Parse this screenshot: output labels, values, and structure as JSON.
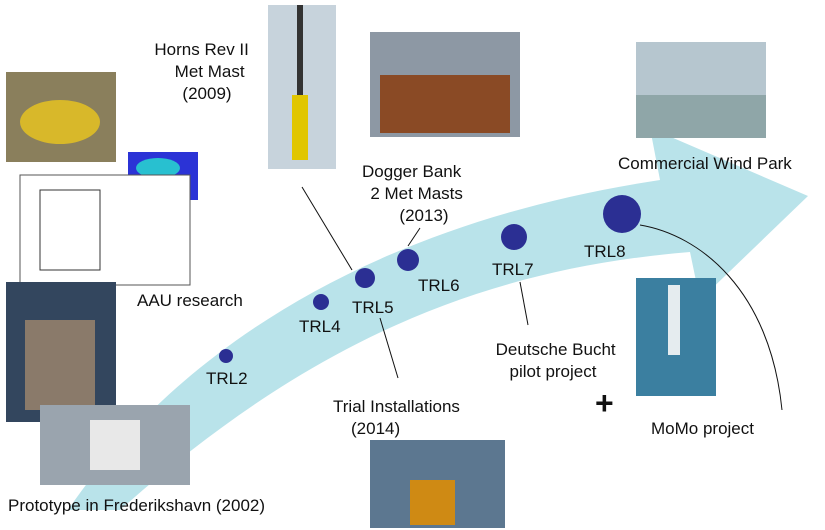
{
  "labels": {
    "horns_rev": [
      "Horns Rev II",
      "Met Mast",
      "(2009)"
    ],
    "dogger": [
      "Dogger Bank",
      "2 Met Masts",
      "(2013)"
    ],
    "commercial": "Commercial Wind Park",
    "aau": "AAU research",
    "prototype": "Prototype in Frederikshavn (2002)",
    "trial": [
      "Trial Installations",
      "(2014)"
    ],
    "deutsche": [
      "Deutsche Bucht",
      "pilot project"
    ],
    "momo": "MoMo project",
    "plus": "+"
  },
  "trl": [
    "TRL2",
    "TRL4",
    "TRL5",
    "TRL6",
    "TRL7",
    "TRL8"
  ]
}
